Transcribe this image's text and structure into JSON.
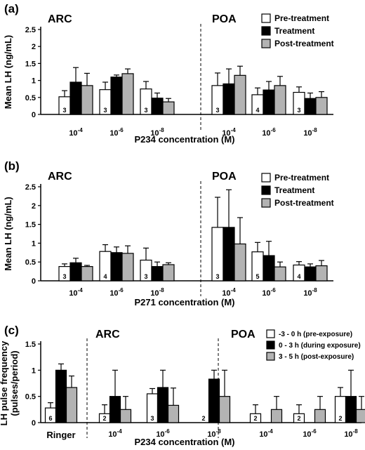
{
  "colors": {
    "pre": "#ffffff",
    "treat": "#000000",
    "post": "#b3b3b3",
    "stroke": "#000000"
  },
  "chart_data": [
    {
      "type": "bar",
      "panel_label": "(a)",
      "ylabel": "Mean LH (ng/mL)",
      "xlabel": "P234 concentration (M)",
      "ylim": [
        0,
        2.5
      ],
      "yticks": [
        0,
        0.5,
        1,
        1.5,
        2,
        2.5
      ],
      "ytick_labels": [
        "0",
        "0.5",
        "1",
        "1.5",
        "2",
        "2.5"
      ],
      "regions": [
        "ARC",
        "POA"
      ],
      "categories": [
        "10-4",
        "10-6",
        "10-8",
        "10-4",
        "10-6",
        "10-8"
      ],
      "category_base": [
        "10",
        "10",
        "10",
        "10",
        "10",
        "10"
      ],
      "category_exp": [
        "-4",
        "-6",
        "-8",
        "-4",
        "-6",
        "-8"
      ],
      "divider_after_index": 2,
      "legend": [
        "Pre-treatment",
        "Treatment",
        "Post-treatment"
      ],
      "n": [
        "3",
        "3",
        "3",
        "3",
        "4",
        "3"
      ],
      "series": [
        {
          "name": "Pre-treatment",
          "values": [
            0.52,
            0.73,
            0.75,
            0.85,
            0.58,
            0.65
          ],
          "errors": [
            0.18,
            0.22,
            0.22,
            0.37,
            0.2,
            0.16
          ]
        },
        {
          "name": "Treatment",
          "values": [
            0.95,
            1.1,
            0.48,
            0.9,
            0.72,
            0.47
          ],
          "errors": [
            0.43,
            0.06,
            0.15,
            0.44,
            0.25,
            0.16
          ]
        },
        {
          "name": "Post-treatment",
          "values": [
            0.85,
            1.2,
            0.37,
            1.15,
            0.85,
            0.5
          ],
          "errors": [
            0.36,
            0.14,
            0.1,
            0.27,
            0.27,
            0.17
          ]
        }
      ]
    },
    {
      "type": "bar",
      "panel_label": "(b)",
      "ylabel": "Mean LH (ng/mL)",
      "xlabel": "P271 concentration (M)",
      "ylim": [
        0,
        2.5
      ],
      "yticks": [
        0,
        0.5,
        1,
        1.5,
        2,
        2.5
      ],
      "ytick_labels": [
        "0",
        "0.5",
        "1",
        "1.5",
        "2",
        "2.5"
      ],
      "regions": [
        "ARC",
        "POA"
      ],
      "categories": [
        "10-4",
        "10-6",
        "10-8",
        "10-4",
        "10-6",
        "10-8"
      ],
      "category_base": [
        "10",
        "10",
        "10",
        "10",
        "10",
        "10"
      ],
      "category_exp": [
        "-4",
        "-6",
        "-8",
        "-4",
        "-6",
        "-8"
      ],
      "divider_after_index": 2,
      "legend": [
        "Pre-treatment",
        "Treatment",
        "Post-treatment"
      ],
      "n": [
        "3",
        "4",
        "3",
        "3",
        "5",
        "4"
      ],
      "series": [
        {
          "name": "Pre-treatment",
          "values": [
            0.38,
            0.78,
            0.55,
            1.42,
            0.77,
            0.42
          ],
          "errors": [
            0.07,
            0.18,
            0.32,
            0.8,
            0.25,
            0.09
          ]
        },
        {
          "name": "Treatment",
          "values": [
            0.48,
            0.75,
            0.38,
            1.42,
            0.67,
            0.37
          ],
          "errors": [
            0.12,
            0.15,
            0.12,
            1.0,
            0.38,
            0.08
          ]
        },
        {
          "name": "Post-treatment",
          "values": [
            0.38,
            0.73,
            0.43,
            0.98,
            0.37,
            0.4
          ],
          "errors": [
            0.03,
            0.2,
            0.05,
            0.7,
            0.13,
            0.14
          ]
        }
      ]
    },
    {
      "type": "bar",
      "panel_label": "(c)",
      "ylabel": "LH pulse frequency\n(pulses/period)",
      "xlabel": "P234 concentration (M)",
      "ylim": [
        0,
        1.5
      ],
      "yticks": [
        0,
        0.5,
        1,
        1.5
      ],
      "ytick_labels": [
        "0",
        "0.5",
        "1",
        "1.5"
      ],
      "regions": [
        "ARC",
        "POA"
      ],
      "categories": [
        "Ringer",
        "10-4",
        "10-6",
        "10-8",
        "10-4",
        "10-6",
        "10-8"
      ],
      "category_base": [
        "Ringer",
        "10",
        "10",
        "10",
        "10",
        "10",
        "10"
      ],
      "category_exp": [
        "",
        "-4",
        "-6",
        "-8",
        "-4",
        "-6",
        "-8"
      ],
      "dividers_after_index": [
        0,
        3
      ],
      "legend": [
        "-3 - 0 h (pre-exposure)",
        "0 - 3 h (during exposure)",
        "3 - 5 h (post-exposure)"
      ],
      "n": [
        "6",
        "2",
        "3",
        "2",
        "2",
        "2",
        "2"
      ],
      "series": [
        {
          "name": "-3 - 0 h (pre-exposure)",
          "values": [
            0.28,
            0.17,
            0.55,
            0,
            0.17,
            0.17,
            0.5
          ],
          "errors": [
            0.1,
            0.17,
            0.1,
            0,
            0.17,
            0.17,
            0.17
          ]
        },
        {
          "name": "0 - 3 h (during exposure)",
          "values": [
            1.0,
            0.5,
            0.67,
            0.83,
            0,
            0,
            0.5
          ],
          "errors": [
            0.12,
            0.5,
            0.33,
            0.17,
            0,
            0,
            0.5
          ]
        },
        {
          "name": "3 - 5 h (post-exposure)",
          "values": [
            0.67,
            0.25,
            0.33,
            0.5,
            0.25,
            0.25,
            0.25
          ],
          "errors": [
            0.22,
            0.25,
            0.33,
            0.5,
            0.25,
            0.25,
            0.25
          ]
        }
      ]
    }
  ]
}
